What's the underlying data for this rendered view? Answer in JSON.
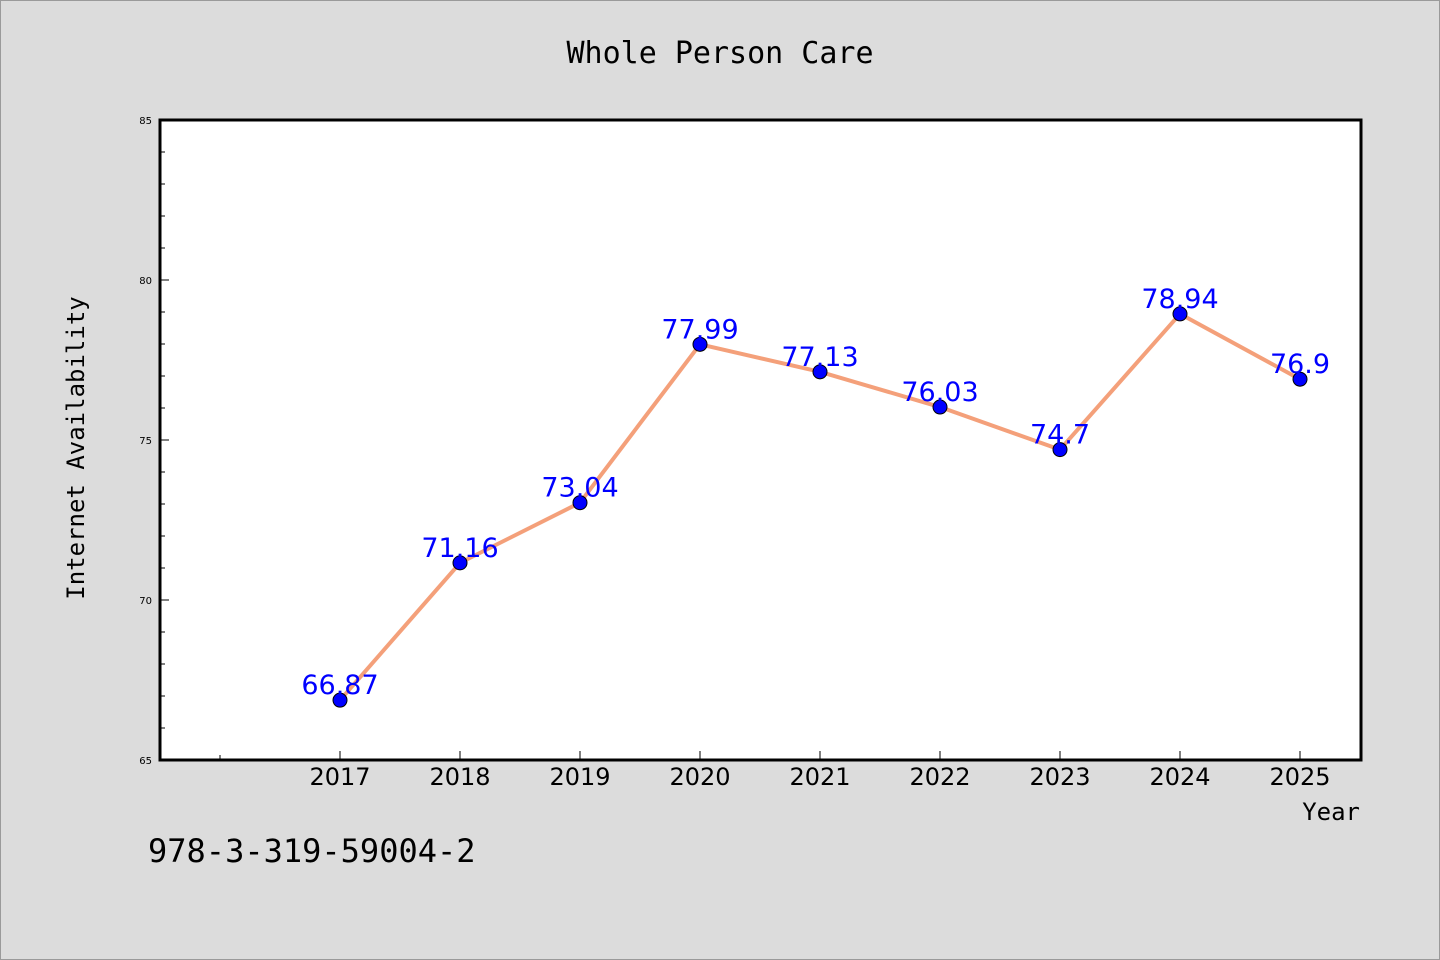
{
  "chart_data": {
    "type": "line",
    "title": "Whole Person Care",
    "xlabel": "Year",
    "ylabel": "Internet Availability",
    "categories": [
      "2017",
      "2018",
      "2019",
      "2020",
      "2021",
      "2022",
      "2023",
      "2024",
      "2025"
    ],
    "values": [
      66.87,
      71.16,
      73.04,
      77.99,
      77.13,
      76.03,
      74.7,
      78.94,
      76.9
    ],
    "value_labels": [
      "66.87",
      "71.16",
      "73.04",
      "77.99",
      "77.13",
      "76.03",
      "74.7",
      "78.94",
      "76.9"
    ],
    "ylim": [
      65,
      85
    ],
    "yticks": [
      "65",
      "70",
      "75",
      "80",
      "85"
    ],
    "line_color": "#f4a07a",
    "marker_color": "#0000ff",
    "label_color": "#0000ff",
    "grid": false
  },
  "footnote": "978-3-319-59004-2"
}
